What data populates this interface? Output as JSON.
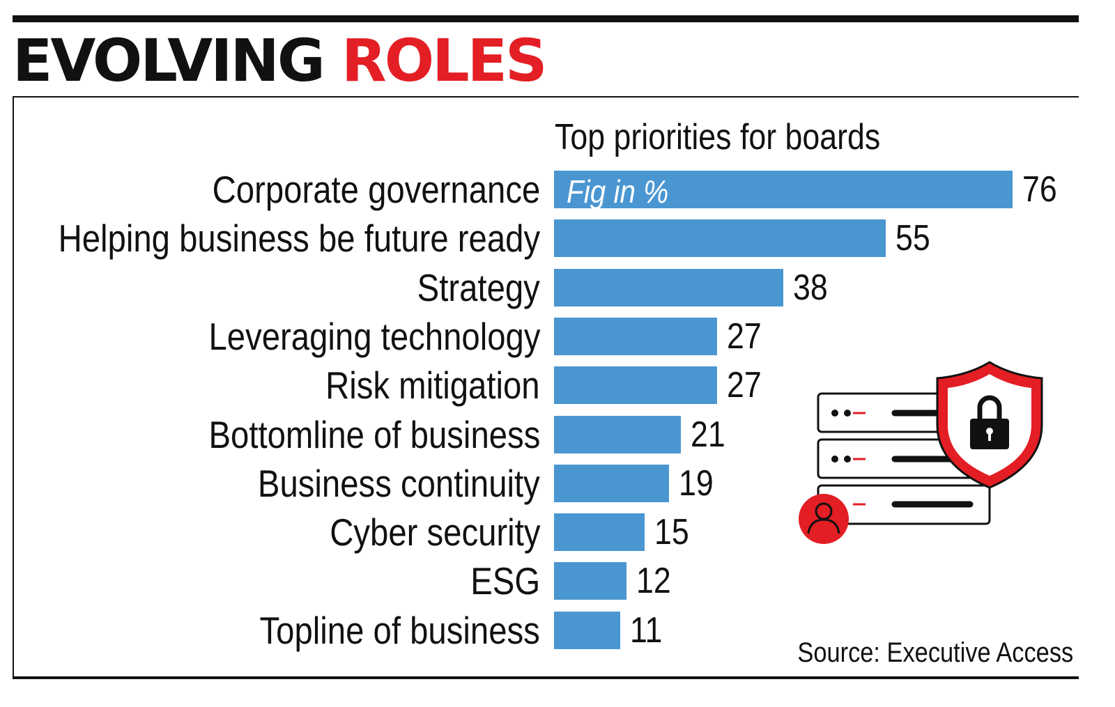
{
  "header": {
    "title_part1": "EVOLVING",
    "title_part2": "ROLES"
  },
  "colors": {
    "bar": "#4a96d1",
    "accent": "#e31e24",
    "text": "#111111"
  },
  "icons": [
    "server-stack-icon",
    "shield-lock-icon",
    "user-icon"
  ],
  "chart_data": {
    "type": "bar",
    "orientation": "horizontal",
    "title": "Top priorities for boards",
    "note": "Fig in %",
    "source": "Source: Executive Access",
    "categories": [
      "Corporate governance",
      "Helping business be future ready",
      "Strategy",
      "Leveraging technology",
      "Risk mitigation",
      "Bottomline of business",
      "Business continuity",
      "Cyber security",
      "ESG",
      "Topline of business"
    ],
    "values": [
      76,
      55,
      38,
      27,
      27,
      21,
      19,
      15,
      12,
      11
    ],
    "xlim": [
      0,
      76
    ],
    "grid": false,
    "legend": false
  }
}
